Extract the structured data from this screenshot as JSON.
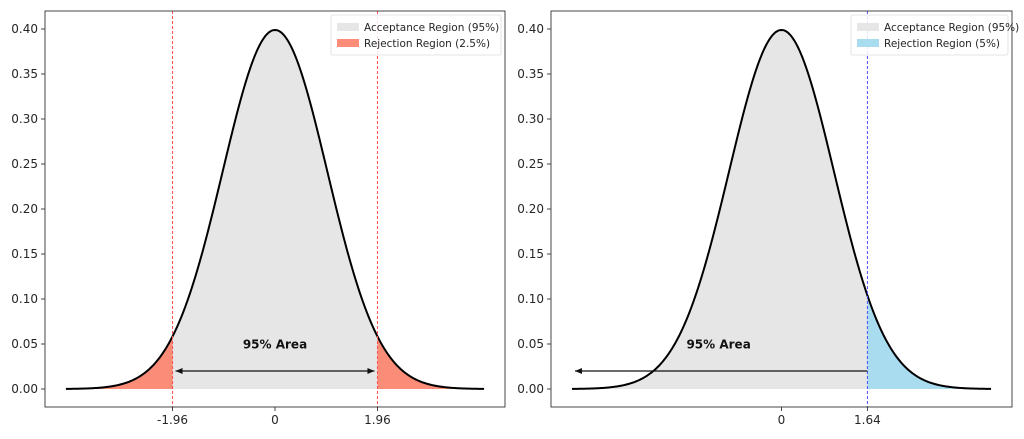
{
  "chart_data": [
    {
      "type": "area",
      "title": "",
      "xlabel": "",
      "ylabel": "",
      "distribution": "standard normal pdf",
      "x_range": [
        -4,
        4
      ],
      "xlim": [
        -4.4,
        4.4
      ],
      "ylim": [
        -0.02,
        0.42
      ],
      "yticks": [
        "0.00",
        "0.05",
        "0.10",
        "0.15",
        "0.20",
        "0.25",
        "0.30",
        "0.35",
        "0.40"
      ],
      "ytick_values": [
        0,
        0.05,
        0.1,
        0.15,
        0.2,
        0.25,
        0.3,
        0.35,
        0.4
      ],
      "xticks": [
        "-1.96",
        "0",
        "1.96"
      ],
      "xtick_values": [
        -1.96,
        0,
        1.96
      ],
      "critical_values": [
        -1.96,
        1.96
      ],
      "critical_line_color": "#ff4d4d",
      "grid": false,
      "legend_position": "top-right",
      "series": [
        {
          "name": "Acceptance Region (95%)",
          "from": -1.96,
          "to": 1.96,
          "color": "#e6e6e6"
        },
        {
          "name": "Rejection Region (2.5%)",
          "regions": [
            [
              -4,
              -1.96
            ],
            [
              1.96,
              4
            ]
          ],
          "color": "#fa8c78"
        }
      ],
      "annotation": {
        "text": "95% Area",
        "arrow_from": -1.96,
        "arrow_to": 1.96,
        "arrow_y": 0.02,
        "text_x": 0,
        "text_y": 0.045,
        "direction": "both"
      }
    },
    {
      "type": "area",
      "title": "",
      "xlabel": "",
      "ylabel": "",
      "distribution": "standard normal pdf",
      "x_range": [
        -4,
        4
      ],
      "xlim": [
        -4.4,
        4.4
      ],
      "ylim": [
        -0.02,
        0.42
      ],
      "yticks": [
        "0.00",
        "0.05",
        "0.10",
        "0.15",
        "0.20",
        "0.25",
        "0.30",
        "0.35",
        "0.40"
      ],
      "ytick_values": [
        0,
        0.05,
        0.1,
        0.15,
        0.2,
        0.25,
        0.3,
        0.35,
        0.4
      ],
      "xticks": [
        "0",
        "1.64"
      ],
      "xtick_values": [
        0,
        1.64
      ],
      "critical_values": [
        1.64
      ],
      "critical_line_color": "#4d4dff",
      "grid": false,
      "legend_position": "top-right",
      "series": [
        {
          "name": "Acceptance Region (95%)",
          "from": -4,
          "to": 1.64,
          "color": "#e6e6e6"
        },
        {
          "name": "Rejection Region (5%)",
          "regions": [
            [
              1.64,
              4
            ]
          ],
          "color": "#a8dcee"
        }
      ],
      "annotation": {
        "text": "95% Area",
        "arrow_from": 1.64,
        "arrow_to": -4,
        "arrow_y": 0.02,
        "text_x": -1.2,
        "text_y": 0.045,
        "direction": "left"
      }
    }
  ]
}
